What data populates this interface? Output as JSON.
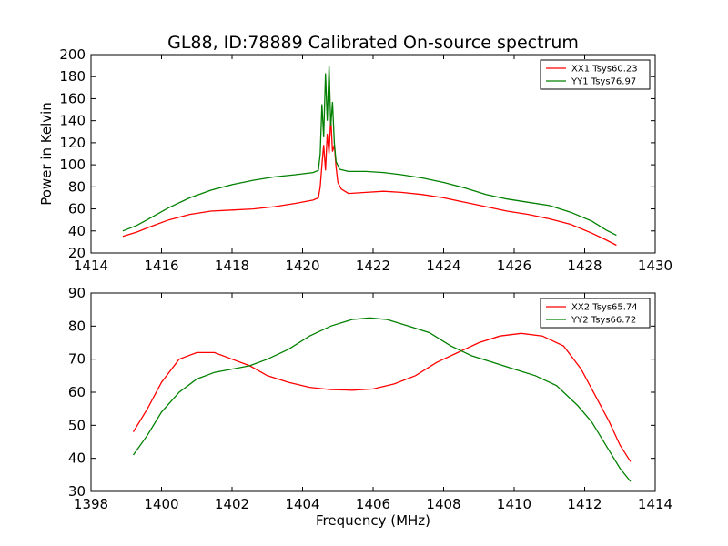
{
  "title": "GL88, ID:78889 Calibrated On-source spectrum",
  "chart_data": [
    {
      "type": "line",
      "ylabel": "Power in Kelvin",
      "xlabel": "",
      "xlim": [
        1414,
        1430
      ],
      "ylim": [
        20,
        200
      ],
      "xticks": [
        1414,
        1416,
        1418,
        1420,
        1422,
        1424,
        1426,
        1428,
        1430
      ],
      "yticks": [
        20,
        40,
        60,
        80,
        100,
        120,
        140,
        160,
        180,
        200
      ],
      "legend_position": "top-right",
      "series": [
        {
          "name": "XX1 Tsys60.23",
          "color": "#ff0000",
          "points": [
            [
              1414.9,
              35
            ],
            [
              1415.3,
              39
            ],
            [
              1415.7,
              44
            ],
            [
              1416.2,
              50
            ],
            [
              1416.8,
              55
            ],
            [
              1417.4,
              58
            ],
            [
              1418.0,
              59
            ],
            [
              1418.6,
              60
            ],
            [
              1419.2,
              62
            ],
            [
              1419.8,
              65
            ],
            [
              1420.3,
              68
            ],
            [
              1420.45,
              70
            ],
            [
              1420.5,
              80
            ],
            [
              1420.55,
              100
            ],
            [
              1420.6,
              118
            ],
            [
              1420.65,
              95
            ],
            [
              1420.7,
              128
            ],
            [
              1420.75,
              110
            ],
            [
              1420.8,
              143
            ],
            [
              1420.85,
              112
            ],
            [
              1420.9,
              118
            ],
            [
              1420.95,
              98
            ],
            [
              1421.0,
              84
            ],
            [
              1421.1,
              78
            ],
            [
              1421.3,
              74
            ],
            [
              1421.8,
              75
            ],
            [
              1422.3,
              76
            ],
            [
              1422.8,
              75
            ],
            [
              1423.4,
              73
            ],
            [
              1424.0,
              70
            ],
            [
              1424.6,
              66
            ],
            [
              1425.2,
              62
            ],
            [
              1425.8,
              58
            ],
            [
              1426.4,
              55
            ],
            [
              1427.0,
              51
            ],
            [
              1427.6,
              46
            ],
            [
              1428.2,
              38
            ],
            [
              1428.6,
              32
            ],
            [
              1428.9,
              27
            ]
          ]
        },
        {
          "name": "YY1 Tsys76.97",
          "color": "#008000",
          "points": [
            [
              1414.9,
              40
            ],
            [
              1415.3,
              45
            ],
            [
              1415.7,
              52
            ],
            [
              1416.2,
              61
            ],
            [
              1416.8,
              70
            ],
            [
              1417.4,
              77
            ],
            [
              1418.0,
              82
            ],
            [
              1418.6,
              86
            ],
            [
              1419.2,
              89
            ],
            [
              1419.8,
              91
            ],
            [
              1420.3,
              93
            ],
            [
              1420.45,
              95
            ],
            [
              1420.5,
              110
            ],
            [
              1420.55,
              155
            ],
            [
              1420.6,
              125
            ],
            [
              1420.65,
              183
            ],
            [
              1420.7,
              140
            ],
            [
              1420.75,
              190
            ],
            [
              1420.8,
              135
            ],
            [
              1420.85,
              157
            ],
            [
              1420.9,
              120
            ],
            [
              1420.95,
              103
            ],
            [
              1421.05,
              96
            ],
            [
              1421.3,
              94
            ],
            [
              1421.8,
              94
            ],
            [
              1422.3,
              93
            ],
            [
              1422.8,
              91
            ],
            [
              1423.4,
              88
            ],
            [
              1424.0,
              84
            ],
            [
              1424.6,
              79
            ],
            [
              1425.2,
              73
            ],
            [
              1425.8,
              69
            ],
            [
              1426.4,
              66
            ],
            [
              1427.0,
              63
            ],
            [
              1427.6,
              57
            ],
            [
              1428.2,
              49
            ],
            [
              1428.6,
              41
            ],
            [
              1428.9,
              36
            ]
          ]
        }
      ]
    },
    {
      "type": "line",
      "ylabel": "",
      "xlabel": "Frequency (MHz)",
      "xlim": [
        1398,
        1414
      ],
      "ylim": [
        30,
        90
      ],
      "xticks": [
        1398,
        1400,
        1402,
        1404,
        1406,
        1408,
        1410,
        1412,
        1414
      ],
      "yticks": [
        30,
        40,
        50,
        60,
        70,
        80,
        90
      ],
      "legend_position": "top-right",
      "series": [
        {
          "name": "XX2 Tsys65.74",
          "color": "#ff0000",
          "points": [
            [
              1399.2,
              48
            ],
            [
              1399.6,
              55
            ],
            [
              1400.0,
              63
            ],
            [
              1400.5,
              70
            ],
            [
              1401.0,
              72
            ],
            [
              1401.5,
              72
            ],
            [
              1402.0,
              70
            ],
            [
              1402.5,
              68
            ],
            [
              1403.0,
              65
            ],
            [
              1403.6,
              63
            ],
            [
              1404.2,
              61.5
            ],
            [
              1404.8,
              60.8
            ],
            [
              1405.4,
              60.6
            ],
            [
              1406.0,
              61
            ],
            [
              1406.6,
              62.5
            ],
            [
              1407.2,
              65
            ],
            [
              1407.8,
              69
            ],
            [
              1408.4,
              72
            ],
            [
              1409.0,
              75
            ],
            [
              1409.6,
              77
            ],
            [
              1410.2,
              77.8
            ],
            [
              1410.8,
              77
            ],
            [
              1411.4,
              74
            ],
            [
              1411.9,
              67
            ],
            [
              1412.3,
              59
            ],
            [
              1412.7,
              51
            ],
            [
              1413.0,
              44
            ],
            [
              1413.3,
              39
            ]
          ]
        },
        {
          "name": "YY2 Tsys66.72",
          "color": "#008000",
          "points": [
            [
              1399.2,
              41
            ],
            [
              1399.6,
              47
            ],
            [
              1400.0,
              54
            ],
            [
              1400.5,
              60
            ],
            [
              1401.0,
              64
            ],
            [
              1401.5,
              66
            ],
            [
              1402.0,
              67
            ],
            [
              1402.5,
              68
            ],
            [
              1403.0,
              70
            ],
            [
              1403.6,
              73
            ],
            [
              1404.2,
              77
            ],
            [
              1404.8,
              80
            ],
            [
              1405.4,
              82
            ],
            [
              1405.9,
              82.5
            ],
            [
              1406.4,
              82
            ],
            [
              1407.0,
              80
            ],
            [
              1407.6,
              78
            ],
            [
              1408.2,
              74
            ],
            [
              1408.8,
              71
            ],
            [
              1409.4,
              69
            ],
            [
              1410.0,
              67
            ],
            [
              1410.6,
              65
            ],
            [
              1411.2,
              62
            ],
            [
              1411.8,
              56
            ],
            [
              1412.2,
              51
            ],
            [
              1412.6,
              44
            ],
            [
              1413.0,
              37
            ],
            [
              1413.3,
              33
            ]
          ]
        }
      ]
    }
  ]
}
